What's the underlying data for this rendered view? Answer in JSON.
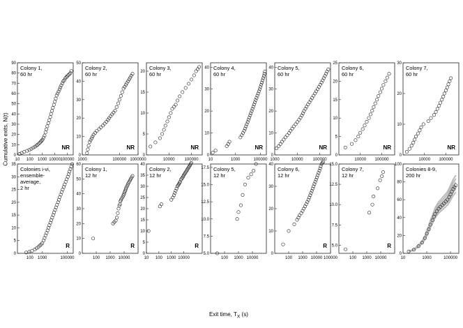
{
  "figure": {
    "ylabel": "Cumulative exits, N(t)",
    "xlabel": "Exit time, T",
    "xlabel_sub": "X",
    "xlabel_unit": "(s)"
  },
  "chart_data": [
    {
      "type": "scatter",
      "panel": "Colony 1, 60 hr",
      "label_lines": [
        "Colony 1,",
        "60 hr"
      ],
      "tag": "NR",
      "x_scale": "log",
      "xlim": [
        10,
        300000
      ],
      "xticks": [
        "10",
        "100",
        "1000",
        "10000",
        "100000"
      ],
      "ylim": [
        0,
        90
      ],
      "yticks": [
        0,
        10,
        20,
        30,
        40,
        50,
        60,
        70,
        80,
        90
      ],
      "x": [
        15,
        22,
        35,
        60,
        90,
        130,
        180,
        250,
        330,
        420,
        520,
        640,
        760,
        900,
        1050,
        1250,
        1500,
        1800,
        2100,
        2500,
        3000,
        3600,
        4300,
        5000,
        6000,
        7000,
        8500,
        10000,
        12000,
        14000,
        17000,
        20000,
        24000,
        28000,
        33000,
        40000,
        48000,
        58000,
        70000,
        85000,
        100000,
        120000,
        150000,
        180000,
        210000
      ],
      "y": [
        1,
        2,
        3,
        4,
        5,
        6,
        7,
        8,
        9,
        10,
        11,
        12,
        13,
        14,
        15,
        17,
        19,
        22,
        25,
        28,
        31,
        34,
        37,
        40,
        43,
        46,
        49,
        52,
        55,
        58,
        60,
        62,
        64,
        66,
        68,
        70,
        72,
        73,
        75,
        76,
        77,
        78,
        79,
        80,
        82
      ]
    },
    {
      "type": "scatter",
      "panel": "Colony 2, 60 hr",
      "label_lines": [
        "Colony 2,",
        "60 hr"
      ],
      "tag": "NR",
      "x_scale": "log",
      "xlim": [
        1000,
        1000000
      ],
      "xticks": [
        "1000",
        "100000",
        "1000000"
      ],
      "ylim": [
        0,
        50
      ],
      "yticks": [
        0,
        10,
        20,
        30,
        40,
        50
      ],
      "x": [
        1800,
        2000,
        2200,
        2500,
        2800,
        3200,
        3600,
        4000,
        5000,
        6000,
        8000,
        10000,
        13000,
        16000,
        20000,
        24000,
        28000,
        33000,
        40000,
        48000,
        58000,
        70000,
        85000,
        100000,
        120000,
        140000,
        165000,
        190000,
        220000,
        250000,
        290000,
        330000,
        380000,
        430000,
        500000
      ],
      "y": [
        1,
        3,
        5,
        7,
        8,
        9,
        10,
        11,
        12,
        13,
        14,
        15,
        16,
        17,
        18,
        19,
        20,
        21,
        22,
        23,
        24,
        26,
        28,
        30,
        32,
        34,
        36,
        37,
        38,
        39,
        40,
        41,
        42,
        43,
        44
      ]
    },
    {
      "type": "scatter",
      "panel": "Colony 3, 60 hr",
      "label_lines": [
        "Colony 3,",
        "60 hr"
      ],
      "tag": "NR",
      "x_scale": "log",
      "xlim": [
        1000,
        300000
      ],
      "xticks": [
        "10000",
        "100000"
      ],
      "ylim": [
        0,
        22
      ],
      "yticks": [
        0,
        5,
        10,
        15,
        20
      ],
      "x": [
        1500,
        2500,
        4000,
        5000,
        6000,
        7000,
        8500,
        10000,
        12000,
        14000,
        17000,
        20000,
        24000,
        30000,
        40000,
        55000,
        75000,
        100000,
        130000,
        160000,
        190000,
        220000
      ],
      "y": [
        2,
        3,
        4,
        5,
        6,
        7,
        8,
        9,
        10,
        11,
        11.5,
        12,
        13,
        14,
        15,
        16,
        17,
        18,
        19,
        20,
        20.5,
        21
      ]
    },
    {
      "type": "scatter",
      "panel": "Colony 4, 60 hr",
      "label_lines": [
        "Colony 4,",
        "60 hr"
      ],
      "tag": "NR",
      "x_scale": "log",
      "xlim": [
        10,
        300000
      ],
      "xticks": [
        "10",
        "1000",
        "100000"
      ],
      "ylim": [
        0,
        42
      ],
      "yticks": [
        0,
        10,
        20,
        30,
        40
      ],
      "x": [
        15,
        25,
        200,
        260,
        330,
        2500,
        3200,
        4000,
        5000,
        6000,
        7000,
        8000,
        9500,
        11000,
        13000,
        15000,
        17000,
        20000,
        23000,
        27000,
        31000,
        36000,
        42000,
        49000,
        57000,
        66000,
        76000,
        88000,
        100000,
        115000,
        130000,
        150000,
        170000,
        190000,
        210000,
        230000
      ],
      "y": [
        1,
        2,
        4,
        5,
        6,
        8,
        9,
        10,
        11,
        12,
        13,
        14,
        15,
        16,
        17,
        18,
        19,
        20,
        21,
        22,
        23,
        24,
        25,
        26,
        27,
        28,
        29,
        30,
        31,
        32,
        33,
        34,
        35,
        36,
        37,
        38
      ]
    },
    {
      "type": "scatter",
      "panel": "Colony 5, 60 hr",
      "label_lines": [
        "Colony 5,",
        "60 hr"
      ],
      "tag": "NR",
      "x_scale": "log",
      "xlim": [
        1000,
        300000
      ],
      "xticks": [
        "1000",
        "10000",
        "100000"
      ],
      "ylim": [
        0,
        42
      ],
      "yticks": [
        0,
        10,
        20,
        30,
        40
      ],
      "x": [
        900,
        1200,
        1500,
        1800,
        2100,
        2500,
        3000,
        3600,
        4300,
        5000,
        6000,
        7000,
        8500,
        10000,
        12000,
        14000,
        16000,
        18000,
        20000,
        23000,
        26000,
        30000,
        35000,
        40000,
        46000,
        53000,
        61000,
        70000,
        80000,
        92000,
        105000,
        120000,
        135000,
        150000,
        170000,
        190000,
        210000,
        240000
      ],
      "y": [
        2,
        3,
        4,
        5,
        6,
        7,
        8,
        9,
        10,
        11,
        12,
        13,
        14,
        15,
        16,
        17,
        18,
        19,
        20,
        21,
        22,
        23,
        24,
        25,
        26,
        27,
        28,
        29,
        30,
        31,
        32,
        33,
        34,
        35,
        36,
        37,
        38,
        39
      ]
    },
    {
      "type": "scatter",
      "panel": "Colony 6, 60 hr",
      "label_lines": [
        "Colony 6,",
        "60 hr"
      ],
      "tag": "NR",
      "x_scale": "log",
      "xlim": [
        1000,
        400000
      ],
      "xticks": [
        "10000",
        "100000"
      ],
      "ylim": [
        0,
        25
      ],
      "yticks": [
        0,
        5,
        10,
        15,
        20,
        25
      ],
      "x": [
        2000,
        4000,
        6000,
        8000,
        10000,
        13000,
        16000,
        20000,
        25000,
        30000,
        36000,
        42000,
        50000,
        60000,
        70000,
        85000,
        100000,
        120000,
        150000,
        180000,
        220000
      ],
      "y": [
        2,
        3,
        4,
        5,
        6,
        7,
        8,
        9,
        10,
        11,
        12,
        13,
        14,
        15,
        16,
        17,
        18,
        19,
        20,
        21,
        22
      ]
    },
    {
      "type": "scatter",
      "panel": "Colony 7, 60 hr",
      "label_lines": [
        "Colony 7,",
        "60 hr"
      ],
      "tag": "NR",
      "x_scale": "log",
      "xlim": [
        1000,
        400000
      ],
      "xticks": [
        "10000",
        "100000"
      ],
      "ylim": [
        0,
        30
      ],
      "yticks": [
        0,
        10,
        20,
        30
      ],
      "x": [
        1500,
        2000,
        2500,
        3000,
        3500,
        4000,
        5000,
        6000,
        7000,
        9000,
        15000,
        20000,
        28000,
        34000,
        40000,
        48000,
        55000,
        65000,
        75000,
        85000,
        100000,
        115000,
        130000,
        150000,
        170000
      ],
      "y": [
        1,
        2,
        3,
        4,
        5,
        6,
        7,
        8,
        9,
        10,
        11,
        12,
        13,
        14,
        15,
        16,
        17,
        18,
        19,
        20,
        21,
        22,
        23,
        24,
        25
      ]
    },
    {
      "type": "scatter",
      "panel": "Colonies i-vi, ensemble-average, 2 hr",
      "label_lines": [
        "Colonies i-vi,",
        "ensemble-",
        "average,",
        "2 hr"
      ],
      "tag": "R",
      "x_scale": "log",
      "xlim": [
        10,
        300000
      ],
      "xticks": [
        "100",
        "1000",
        "100000"
      ],
      "ylim": [
        0,
        35
      ],
      "yticks": [
        0,
        5,
        10,
        15,
        20,
        25,
        30,
        35
      ],
      "x": [
        50,
        90,
        150,
        250,
        350,
        480,
        620,
        800,
        1000,
        1250,
        1500,
        1800,
        2200,
        2600,
        3100,
        3700,
        4400,
        5200,
        6200,
        7400,
        8800,
        10500,
        12500,
        15000,
        18000,
        21000,
        25000,
        30000,
        36000,
        43000,
        52000,
        62000,
        75000,
        90000,
        110000,
        130000,
        150000,
        180000,
        210000,
        250000
      ],
      "y": [
        0.3,
        0.6,
        1,
        1.5,
        2,
        2.5,
        3,
        3.5,
        4,
        5,
        6,
        7,
        8,
        9,
        10,
        11,
        12,
        13,
        14,
        15,
        16,
        17,
        18,
        19,
        20,
        21,
        22,
        23,
        24,
        25,
        26,
        27,
        28,
        29,
        30,
        31,
        32,
        33,
        34,
        35
      ]
    },
    {
      "type": "scatter",
      "panel": "Colony 1, 12 hr",
      "label_lines": [
        "Colony 1,",
        "12 hr"
      ],
      "tag": "R",
      "x_scale": "log",
      "xlim": [
        10,
        100000
      ],
      "xticks": [
        "100",
        "1000",
        "10000"
      ],
      "ylim": [
        0,
        60
      ],
      "yticks": [
        0,
        10,
        20,
        30,
        40,
        50,
        60
      ],
      "x": [
        60,
        1600,
        2000,
        2500,
        3000,
        3500,
        4000,
        4500,
        5000,
        5500,
        6000,
        7000,
        8000,
        9000,
        10000,
        11000,
        12000,
        13000,
        14000,
        16000,
        18000,
        20000,
        23000,
        26000,
        30000,
        35000,
        40000
      ],
      "y": [
        10,
        20,
        21,
        22,
        24,
        27,
        30,
        32,
        33,
        35,
        36,
        37,
        38,
        39,
        40,
        41,
        42,
        43,
        44,
        45,
        46,
        47,
        48,
        49,
        50,
        51,
        52
      ]
    },
    {
      "type": "scatter",
      "panel": "Colony 2, 12 hr",
      "label_lines": [
        "Colony 2,",
        "12 hr"
      ],
      "tag": "R",
      "x_scale": "log",
      "xlim": [
        10,
        300000
      ],
      "xticks": [
        "10",
        "100",
        "1000",
        "10000"
      ],
      "ylim": [
        0,
        40
      ],
      "yticks": [
        0,
        5,
        10,
        15,
        20,
        25,
        30,
        35,
        40
      ],
      "x": [
        15,
        120,
        160,
        1000,
        1300,
        1600,
        1900,
        2200,
        2600,
        3000,
        3500,
        4000,
        4500,
        5000,
        6000,
        7000,
        8000,
        9000,
        10000,
        11500,
        13000,
        15000,
        17000,
        19000,
        22000,
        25000,
        28000,
        32000,
        36000,
        40000
      ],
      "y": [
        10,
        21,
        22,
        24,
        25,
        26,
        27,
        28,
        29,
        30,
        30.5,
        31,
        31.5,
        32,
        33,
        33.5,
        34,
        34.5,
        35,
        35.5,
        36,
        36.5,
        37,
        37.5,
        38,
        38.5,
        39,
        39.5,
        40,
        40.5
      ]
    },
    {
      "type": "scatter",
      "panel": "Colony 5, 12 hr",
      "label_lines": [
        "Colony 5,",
        "12 hr"
      ],
      "tag": "",
      "x_scale": "log",
      "xlim": [
        10,
        100000
      ],
      "xticks": [
        "100",
        "1000",
        "10000"
      ],
      "ylim": [
        5,
        18
      ],
      "yticks": [
        "5.0",
        "7.5",
        "10.0",
        "12.5",
        "15.0",
        "17.5"
      ],
      "x": [
        30,
        800,
        1000,
        1500,
        2000,
        3000,
        5000,
        8000,
        12000,
        18000
      ],
      "y": [
        5,
        10,
        11,
        12,
        13.5,
        15,
        16,
        16.5,
        17,
        18
      ]
    },
    {
      "type": "scatter",
      "panel": "Colony 6, 12 hr",
      "label_lines": [
        "Colony 6,",
        "12 hr"
      ],
      "tag": "R",
      "x_scale": "log",
      "xlim": [
        10,
        100000
      ],
      "xticks": [
        "100",
        "1000",
        "10000",
        "100000"
      ],
      "ylim": [
        0,
        40
      ],
      "yticks": [
        0,
        10,
        20,
        30,
        40
      ],
      "x": [
        40,
        100,
        250,
        400,
        500,
        600,
        800,
        1000,
        1200,
        1500,
        1800,
        2200,
        2600,
        3000,
        3500,
        4000,
        4600,
        5300,
        6100,
        7000,
        8000,
        9200,
        10500,
        12000,
        14000,
        16000,
        18000,
        20000,
        23000,
        26000,
        30000
      ],
      "y": [
        4,
        10,
        13,
        15,
        16,
        17,
        18,
        19,
        20,
        21,
        22,
        23,
        24,
        25,
        26,
        27,
        28,
        29,
        30,
        31,
        32,
        33,
        34,
        35,
        36,
        37,
        38,
        39,
        40,
        40.5,
        41
      ]
    },
    {
      "type": "scatter",
      "panel": "Colony 7, 12 hr",
      "label_lines": [
        "Colony 7,",
        "12 hr"
      ],
      "tag": "R",
      "x_scale": "log",
      "xlim": [
        10,
        100000
      ],
      "xticks": [
        "100",
        "1000",
        "10000"
      ],
      "ylim": [
        4,
        15
      ],
      "yticks": [
        "5.0",
        "7.5",
        "10.0",
        "12.5",
        "15.0"
      ],
      "x": [
        30,
        1500,
        2500,
        3000,
        6000,
        9000,
        12000,
        15000
      ],
      "y": [
        4.5,
        9,
        10,
        11,
        12,
        13,
        13.5,
        14
      ]
    },
    {
      "type": "scatter",
      "panel": "Colonies 8-9, 200 hr",
      "label_lines": [
        "Colonies 8-9,",
        "200 hr"
      ],
      "tag": "",
      "x_scale": "log",
      "xlim": [
        10,
        500000
      ],
      "xticks": [
        "10",
        "1000",
        "100000"
      ],
      "ylim": [
        0,
        100
      ],
      "yticks": [
        0,
        20,
        40,
        60,
        80,
        100
      ],
      "x": [
        30,
        80,
        200,
        400,
        700,
        1000,
        1500,
        2000,
        3000,
        4000,
        5000,
        7000,
        10000,
        14000,
        20000,
        28000,
        40000,
        55000,
        75000,
        100000,
        130000,
        170000,
        220000,
        280000
      ],
      "y": [
        2,
        4,
        8,
        12,
        17,
        22,
        27,
        32,
        37,
        41,
        44,
        47,
        50,
        52,
        54,
        56,
        58,
        60,
        63,
        66,
        69,
        72,
        74,
        76
      ],
      "series_note": "grey ensemble curves behind black markers"
    }
  ]
}
